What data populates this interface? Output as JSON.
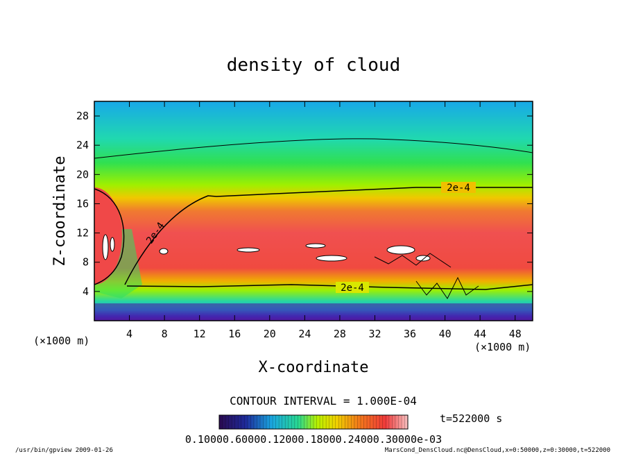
{
  "chart_data": {
    "type": "heatmap",
    "title": "density of cloud",
    "xlabel": "X-coordinate",
    "ylabel": "Z-coordinate",
    "x_unit": "(×1000 m)",
    "z_unit": "(×1000 m)",
    "xlim": [
      0,
      50
    ],
    "ylim": [
      0,
      30
    ],
    "x_ticks": [
      4,
      8,
      12,
      16,
      20,
      24,
      28,
      32,
      36,
      40,
      44,
      48
    ],
    "y_ticks": [
      4,
      8,
      12,
      16,
      20,
      24,
      28
    ],
    "contour_label": "2e-4",
    "contour_interval": "CONTOUR INTERVAL = 1.000E-04",
    "time_label": "t=522000 s",
    "colorbar_labels": "0.10000.60000.12000.18000.24000.30000e-03",
    "colorbar_colors": [
      "#2a0a50",
      "#1e2a9a",
      "#1aa7e0",
      "#28d890",
      "#b8f000",
      "#f0d200",
      "#f27a1a",
      "#ef3a3a",
      "#f6c0c0"
    ],
    "contour_levels_e4": [
      1,
      2
    ],
    "footer_left": "/usr/bin/gpview  2009-01-26",
    "footer_right": "MarsCond_DensCloud.nc@DensCloud,x=0:50000,z=0:30000,t=522000"
  }
}
